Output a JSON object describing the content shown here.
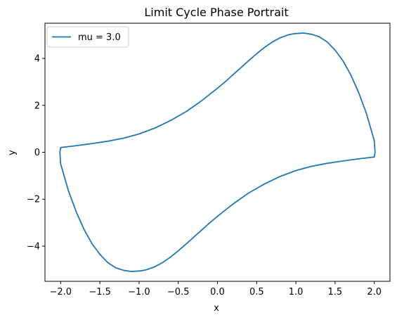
{
  "chart_data": {
    "type": "line",
    "title": "Limit Cycle Phase Portrait",
    "xlabel": "x",
    "ylabel": "y",
    "xlim": [
      -2.2,
      2.2
    ],
    "ylim": [
      -5.5,
      5.5
    ],
    "xticks": [
      -2.0,
      -1.5,
      -1.0,
      -0.5,
      0.0,
      0.5,
      1.0,
      1.5,
      2.0
    ],
    "xtick_labels": [
      "−2.0",
      "−1.5",
      "−1.0",
      "−0.5",
      "0.0",
      "0.5",
      "1.0",
      "1.5",
      "2.0"
    ],
    "yticks": [
      -4,
      -2,
      0,
      2,
      4
    ],
    "ytick_labels": [
      "−4",
      "−2",
      "0",
      "2",
      "4"
    ],
    "grid": false,
    "legend": {
      "placement": "top-left",
      "entries": [
        "mu = 3.0"
      ]
    },
    "series": [
      {
        "name": "mu = 3.0",
        "color": "#1f77b4",
        "x": [
          2.01,
          2.0,
          1.9,
          1.8,
          1.7,
          1.6,
          1.5,
          1.4,
          1.3,
          1.2,
          1.1,
          1.0,
          0.97,
          0.9,
          0.8,
          0.7,
          0.6,
          0.5,
          0.4,
          0.3,
          0.2,
          0.1,
          0.0,
          -0.2,
          -0.4,
          -0.6,
          -0.8,
          -1.0,
          -1.2,
          -1.4,
          -1.6,
          -1.8,
          -1.95,
          -2.0,
          -2.01,
          -2.0,
          -1.9,
          -1.8,
          -1.7,
          -1.6,
          -1.5,
          -1.4,
          -1.3,
          -1.2,
          -1.1,
          -1.0,
          -0.97,
          -0.9,
          -0.8,
          -0.7,
          -0.6,
          -0.5,
          -0.4,
          -0.3,
          -0.2,
          -0.1,
          0.0,
          0.2,
          0.4,
          0.6,
          0.8,
          1.0,
          1.2,
          1.4,
          1.6,
          1.8,
          1.95,
          2.0,
          2.01
        ],
        "y": [
          0.0,
          0.5,
          1.65,
          2.55,
          3.3,
          3.9,
          4.35,
          4.7,
          4.92,
          5.03,
          5.08,
          5.06,
          5.05,
          5.0,
          4.88,
          4.7,
          4.47,
          4.2,
          3.91,
          3.61,
          3.31,
          3.01,
          2.73,
          2.2,
          1.73,
          1.35,
          1.03,
          0.78,
          0.6,
          0.47,
          0.37,
          0.28,
          0.22,
          0.2,
          0.0,
          -0.5,
          -1.65,
          -2.55,
          -3.3,
          -3.9,
          -4.35,
          -4.7,
          -4.92,
          -5.03,
          -5.08,
          -5.06,
          -5.05,
          -5.0,
          -4.88,
          -4.7,
          -4.47,
          -4.2,
          -3.91,
          -3.61,
          -3.31,
          -3.01,
          -2.73,
          -2.2,
          -1.73,
          -1.35,
          -1.03,
          -0.78,
          -0.6,
          -0.47,
          -0.37,
          -0.28,
          -0.22,
          -0.2,
          0.0
        ]
      }
    ]
  }
}
